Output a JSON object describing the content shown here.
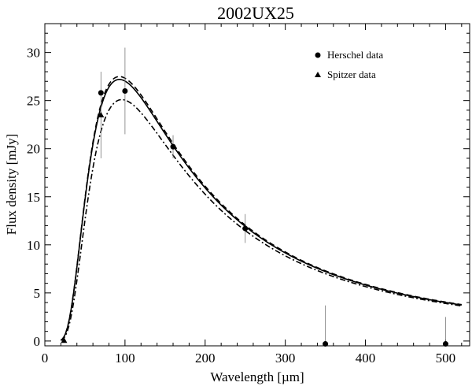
{
  "chart_data": {
    "type": "scatter",
    "title": "2002UX25",
    "xlabel": "Wavelength [µm]",
    "ylabel": "Flux density [mJy]",
    "xlim": [
      0,
      530
    ],
    "ylim": [
      -0.5,
      33
    ],
    "xticks": [
      0,
      100,
      200,
      300,
      400,
      500
    ],
    "yticks": [
      0,
      5,
      10,
      15,
      20,
      25,
      30
    ],
    "grid": false,
    "legend_position": "top-right",
    "legend": [
      {
        "label": "Herschel data",
        "marker": "circle"
      },
      {
        "label": "Spitzer data",
        "marker": "triangle"
      }
    ],
    "series": [
      {
        "marker": "circle",
        "points": [
          {
            "x": 70,
            "y": 25.8,
            "yerr_low": 0.3,
            "yerr_high": 0.3
          },
          {
            "x": 100,
            "y": 26.0,
            "yerr_low": 4.5,
            "yerr_high": 4.5
          },
          {
            "x": 160,
            "y": 20.2,
            "yerr_low": 1.2,
            "yerr_high": 1.2
          },
          {
            "x": 250,
            "y": 11.7,
            "yerr_low": 1.5,
            "yerr_high": 1.5
          },
          {
            "x": 350,
            "y": -0.3,
            "yerr_low": 0,
            "yerr_high": 4.0
          },
          {
            "x": 500,
            "y": -0.3,
            "yerr_low": 0,
            "yerr_high": 2.8
          }
        ]
      },
      {
        "marker": "triangle",
        "points": [
          {
            "x": 24,
            "y": 0.05,
            "yerr_low": 0.05,
            "yerr_high": 0.05
          },
          {
            "x": 70,
            "y": 23.5,
            "yerr_low": 4.5,
            "yerr_high": 4.5
          }
        ]
      }
    ],
    "model_curves": [
      {
        "style": "solid",
        "peak_x": 93,
        "peak_y": 27.2
      },
      {
        "style": "dashed",
        "peak_x": 93,
        "peak_y": 27.5
      },
      {
        "style": "dash-dot",
        "peak_x": 96,
        "peak_y": 25.1
      }
    ]
  }
}
